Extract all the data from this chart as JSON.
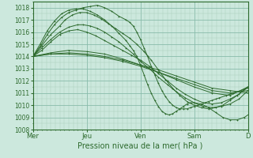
{
  "xlabel": "Pression niveau de la mer( hPa )",
  "bg_color": "#cce8dd",
  "grid_color_minor": "#aaccbb",
  "grid_color_major": "#88bbaa",
  "line_color": "#2d6a2d",
  "ylim": [
    1008,
    1018.5
  ],
  "xlim": [
    0,
    120
  ],
  "yticks": [
    1008,
    1009,
    1010,
    1011,
    1012,
    1013,
    1014,
    1015,
    1016,
    1017,
    1018
  ],
  "xtick_labels": [
    "Mer",
    "Jeu",
    "Ven",
    "Sam",
    "D"
  ],
  "xtick_positions": [
    0,
    30,
    60,
    90,
    120
  ],
  "series": [
    {
      "x": [
        0,
        10,
        20,
        30,
        40,
        50,
        60,
        70,
        80,
        90,
        100,
        110,
        120
      ],
      "y": [
        1014.0,
        1014.2,
        1014.3,
        1014.2,
        1014.0,
        1013.7,
        1013.3,
        1012.9,
        1012.4,
        1011.9,
        1011.4,
        1011.2,
        1011.0
      ]
    },
    {
      "x": [
        0,
        10,
        20,
        30,
        40,
        50,
        60,
        70,
        80,
        90,
        100,
        110,
        120
      ],
      "y": [
        1014.0,
        1014.2,
        1014.2,
        1014.1,
        1013.9,
        1013.6,
        1013.2,
        1012.7,
        1012.2,
        1011.7,
        1011.2,
        1011.0,
        1011.2
      ]
    },
    {
      "x": [
        0,
        10,
        20,
        30,
        40,
        50,
        60,
        70,
        80,
        90,
        100,
        110,
        120
      ],
      "y": [
        1014.0,
        1014.3,
        1014.5,
        1014.4,
        1014.2,
        1013.8,
        1013.3,
        1012.7,
        1012.1,
        1011.5,
        1011.0,
        1010.8,
        1011.5
      ]
    },
    {
      "x": [
        0,
        5,
        10,
        15,
        20,
        25,
        30,
        35,
        40,
        45,
        50,
        55,
        60,
        65,
        70,
        75,
        80,
        85,
        90,
        95,
        100,
        105,
        110,
        115,
        120
      ],
      "y": [
        1014.0,
        1014.5,
        1015.2,
        1015.8,
        1016.1,
        1016.2,
        1016.0,
        1015.7,
        1015.3,
        1014.9,
        1014.5,
        1014.1,
        1013.7,
        1013.2,
        1012.6,
        1012.0,
        1011.4,
        1010.9,
        1010.5,
        1010.2,
        1010.1,
        1010.2,
        1010.5,
        1010.9,
        1011.5
      ]
    },
    {
      "x": [
        0,
        5,
        10,
        15,
        20,
        25,
        28,
        32,
        36,
        40,
        44,
        48,
        52,
        56,
        60,
        65,
        70,
        75,
        80,
        85,
        90,
        95,
        100,
        105,
        110,
        115,
        120
      ],
      "y": [
        1014.0,
        1014.7,
        1015.4,
        1016.0,
        1016.4,
        1016.6,
        1016.6,
        1016.5,
        1016.3,
        1016.0,
        1015.6,
        1015.2,
        1014.7,
        1014.2,
        1013.6,
        1013.0,
        1012.3,
        1011.7,
        1011.1,
        1010.6,
        1010.2,
        1009.9,
        1009.8,
        1009.9,
        1010.1,
        1010.5,
        1011.2
      ]
    },
    {
      "x": [
        0,
        5,
        10,
        15,
        18,
        22,
        26,
        30,
        34,
        38,
        42,
        46,
        50,
        54,
        58,
        62,
        66,
        70,
        74,
        78,
        82,
        86,
        90,
        94,
        98,
        102,
        106,
        110,
        114,
        118,
        120
      ],
      "y": [
        1014.0,
        1014.9,
        1015.8,
        1016.5,
        1017.0,
        1017.4,
        1017.6,
        1017.6,
        1017.4,
        1017.1,
        1016.7,
        1016.3,
        1015.9,
        1015.5,
        1015.0,
        1014.4,
        1013.7,
        1012.9,
        1012.1,
        1011.4,
        1010.8,
        1010.3,
        1010.0,
        1009.8,
        1009.7,
        1009.8,
        1010.0,
        1010.4,
        1010.8,
        1011.3,
        1011.5
      ]
    },
    {
      "x": [
        0,
        4,
        8,
        12,
        16,
        20,
        24,
        28,
        32,
        36,
        40,
        44,
        48,
        52,
        54,
        56,
        58,
        60,
        62,
        64,
        66,
        68,
        70,
        72,
        74,
        76,
        78,
        80,
        82,
        84,
        86,
        88,
        90,
        92,
        94,
        96,
        98,
        100,
        102,
        104,
        108,
        112,
        116,
        120
      ],
      "y": [
        1014.0,
        1014.8,
        1015.8,
        1016.6,
        1017.2,
        1017.6,
        1017.8,
        1018.0,
        1018.1,
        1018.2,
        1018.0,
        1017.7,
        1017.3,
        1017.0,
        1016.8,
        1016.5,
        1016.0,
        1015.4,
        1014.7,
        1014.0,
        1013.2,
        1012.5,
        1011.8,
        1011.2,
        1010.7,
        1010.3,
        1010.0,
        1009.8,
        1009.7,
        1009.7,
        1009.7,
        1009.8,
        1009.9,
        1010.0,
        1010.1,
        1010.2,
        1010.3,
        1010.4,
        1010.5,
        1010.6,
        1010.8,
        1011.0,
        1011.2,
        1011.4
      ]
    },
    {
      "x": [
        0,
        4,
        8,
        12,
        16,
        20,
        24,
        28,
        32,
        36,
        40,
        44,
        48,
        52,
        54,
        56,
        58,
        60,
        62,
        64,
        66,
        68,
        70,
        72,
        74,
        76,
        78,
        80,
        82,
        84,
        86,
        88,
        90,
        94,
        98,
        102,
        106,
        110,
        114,
        118,
        120
      ],
      "y": [
        1014.0,
        1015.0,
        1016.1,
        1016.9,
        1017.5,
        1017.8,
        1017.9,
        1017.9,
        1017.7,
        1017.4,
        1017.0,
        1016.5,
        1015.9,
        1015.3,
        1014.9,
        1014.5,
        1014.0,
        1013.3,
        1012.5,
        1011.7,
        1011.0,
        1010.4,
        1009.9,
        1009.5,
        1009.3,
        1009.2,
        1009.3,
        1009.5,
        1009.7,
        1009.9,
        1010.1,
        1010.2,
        1010.2,
        1010.1,
        1009.8,
        1009.4,
        1009.0,
        1008.8,
        1008.8,
        1009.0,
        1009.2
      ]
    }
  ]
}
